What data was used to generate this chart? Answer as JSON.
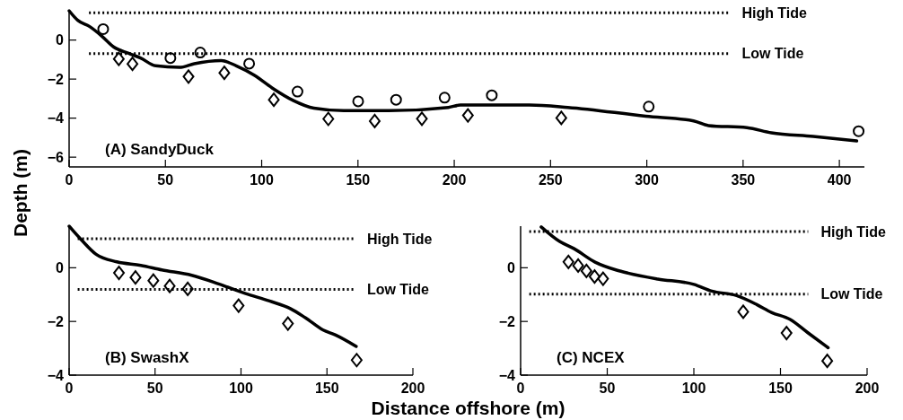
{
  "chart_data": [
    {
      "type": "line",
      "ylabel": "Depth (m)",
      "annotations": [
        "(A) SandyDuck"
      ],
      "xlim": [
        0,
        413
      ],
      "ylim": [
        -6.5,
        1.5
      ],
      "xticks": [
        0,
        50,
        100,
        150,
        200,
        250,
        300,
        350,
        400
      ],
      "yticks": [
        -6,
        -4,
        -2,
        0
      ],
      "grid": false,
      "ref_lines": [
        {
          "axis": "y",
          "value": 1.4,
          "label": "High Tide",
          "line_style": "dotted"
        },
        {
          "axis": "y",
          "value": -0.7,
          "label": "Low Tide",
          "line_style": "dotted"
        }
      ],
      "series": [
        {
          "type": "line",
          "color": "#000000",
          "marker": "none",
          "x": [
            0,
            4.5,
            10.7,
            16.9,
            23.1,
            30.9,
            37.1,
            44.9,
            57.3,
            65,
            79,
            86.8,
            96.1,
            105.4,
            116.3,
            127.1,
            142.6,
            166,
            197,
            203.2,
            239,
            259,
            299.5,
            324.3,
            332,
            352,
            364.7,
            386.4,
            409
          ],
          "values": [
            1.5,
            1.01,
            0.69,
            0.21,
            -0.35,
            -0.68,
            -0.92,
            -1.32,
            -1.4,
            -1.21,
            -1.05,
            -1.32,
            -1.8,
            -2.45,
            -3.09,
            -3.49,
            -3.62,
            -3.62,
            -3.45,
            -3.33,
            -3.33,
            -3.45,
            -3.9,
            -4.14,
            -4.38,
            -4.49,
            -4.75,
            -4.94,
            -5.17
          ]
        },
        {
          "type": "scatter",
          "color": "#000000",
          "marker": "circle",
          "x": [
            17.7,
            52.6,
            68.1,
            93.5,
            118.6,
            150.1,
            169.8,
            195,
            219.5,
            301,
            410
          ],
          "values": [
            0.56,
            -0.92,
            -0.64,
            -1.21,
            -2.64,
            -3.14,
            -3.06,
            -2.95,
            -2.83,
            -3.41,
            -4.67
          ]
        },
        {
          "type": "scatter",
          "color": "#000000",
          "marker": "diamond",
          "x": [
            25.8,
            32.9,
            62,
            80.6,
            106.3,
            134.6,
            158.7,
            183.2,
            207.1,
            255.6
          ],
          "values": [
            -0.97,
            -1.22,
            -1.87,
            -1.68,
            -3.06,
            -4.04,
            -4.15,
            -4.03,
            -3.86,
            -3.99
          ]
        }
      ]
    },
    {
      "type": "line",
      "xlabel": "Distance offshore (m)",
      "annotations": [
        "(B) SwashX"
      ],
      "xlim": [
        0,
        200
      ],
      "ylim": [
        -4,
        1.55
      ],
      "xticks": [
        0,
        50,
        100,
        150,
        200
      ],
      "yticks": [
        -4,
        -2,
        0
      ],
      "grid": false,
      "ref_lines": [
        {
          "axis": "y",
          "value": 1.08,
          "label": "High Tide",
          "line_style": "dotted"
        },
        {
          "axis": "y",
          "value": -0.81,
          "label": "Low Tide",
          "line_style": "dotted"
        }
      ],
      "series": [
        {
          "type": "line",
          "color": "#000000",
          "marker": "none",
          "x": [
            0,
            7,
            15.7,
            27.8,
            41.7,
            53.9,
            71.3,
            87,
            102.7,
            116.6,
            128.7,
            137.4,
            147.8,
            154.8,
            167
          ],
          "values": [
            1.55,
            1.05,
            0.5,
            0.22,
            0.09,
            -0.08,
            -0.28,
            -0.6,
            -0.96,
            -1.24,
            -1.52,
            -1.86,
            -2.32,
            -2.5,
            -2.93
          ]
        },
        {
          "type": "scatter",
          "color": "#000000",
          "marker": "diamond",
          "x": [
            29,
            38.6,
            49,
            58.5,
            69,
            98.6,
            127.3,
            167.3
          ],
          "values": [
            -0.19,
            -0.36,
            -0.48,
            -0.68,
            -0.79,
            -1.41,
            -2.08,
            -3.44
          ]
        }
      ]
    },
    {
      "type": "line",
      "annotations": [
        "(C) NCEX"
      ],
      "xlim": [
        0,
        200
      ],
      "ylim": [
        -4,
        1.55
      ],
      "xticks": [
        0,
        50,
        100,
        150,
        200
      ],
      "yticks": [
        -4,
        -2,
        0
      ],
      "grid": false,
      "ref_lines": [
        {
          "axis": "y",
          "value": 1.35,
          "label": "High Tide",
          "line_style": "dotted"
        },
        {
          "axis": "y",
          "value": -0.98,
          "label": "Low Tide",
          "line_style": "dotted"
        }
      ],
      "series": [
        {
          "type": "line",
          "color": "#000000",
          "marker": "none",
          "x": [
            11.9,
            22.3,
            30.9,
            43,
            55,
            62,
            79.2,
            100,
            110.4,
            124.3,
            136.3,
            145,
            155.4,
            165.8,
            177.5
          ],
          "values": [
            1.52,
            0.99,
            0.71,
            0.21,
            -0.08,
            -0.2,
            -0.42,
            -0.62,
            -0.87,
            -1.03,
            -1.37,
            -1.67,
            -1.92,
            -2.42,
            -2.98
          ]
        },
        {
          "type": "scatter",
          "color": "#000000",
          "marker": "diamond",
          "x": [
            27.6,
            33.2,
            38,
            42.7,
            47.6,
            128.5,
            153.5,
            177
          ],
          "values": [
            0.22,
            0.08,
            -0.12,
            -0.33,
            -0.41,
            -1.64,
            -2.43,
            -3.47
          ]
        }
      ]
    }
  ]
}
